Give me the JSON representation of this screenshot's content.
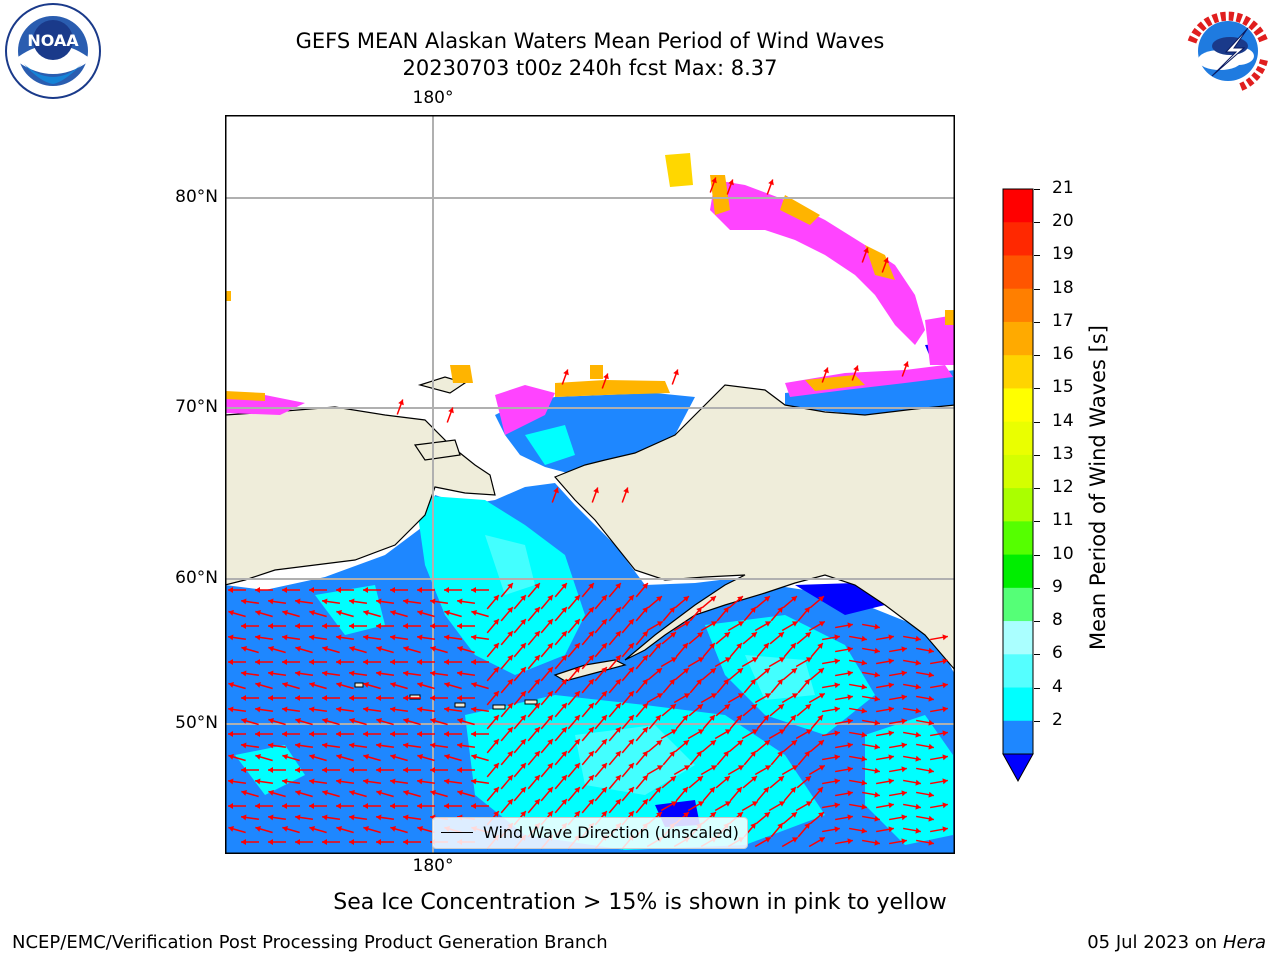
{
  "header": {
    "title_line1": "GEFS MEAN Alaskan Waters Mean Period of Wind Waves",
    "title_line2": "20230703 t00z 240h fcst   Max: 8.37"
  },
  "logos": {
    "left": "NOAA",
    "right": "NATIONAL WEATHER SERVICE"
  },
  "map": {
    "lat_labels": [
      "80°N",
      "70°N",
      "60°N",
      "50°N"
    ],
    "lon_label_top": "180°",
    "lon_label_bottom": "180°",
    "legend_label": "Wind Wave Direction (unscaled)",
    "colors": {
      "land": "#efedda",
      "ocean_2_4": "#1e87ff",
      "ocean_4_6": "#00ffff",
      "ocean_6_8": "#43ffff",
      "below_2": "#0000ff",
      "ice_pink": "#ff44ff",
      "ice_orange": "#ffb400",
      "ice_yellow": "#ffd700",
      "arrow": "#ff0000",
      "grid": "#b0b0b0"
    }
  },
  "colorbar": {
    "label": "Mean Period of Wind Waves [s]",
    "ticks": [
      "21",
      "20",
      "19",
      "18",
      "17",
      "16",
      "15",
      "14",
      "13",
      "12",
      "11",
      "10",
      "9",
      "8",
      "6",
      "4",
      "2"
    ],
    "colors": [
      "#ff0000",
      "#ff2800",
      "#ff5500",
      "#ff7f00",
      "#ffaa00",
      "#ffd400",
      "#ffff00",
      "#eaff00",
      "#d4ff00",
      "#aaff00",
      "#55ff00",
      "#00ee00",
      "#55ff77",
      "#aaffff",
      "#55ffff",
      "#00ffff",
      "#1e87ff"
    ],
    "under_color": "#0000ff"
  },
  "notes": {
    "sea_ice": "Sea Ice Concentration > 15% is shown in pink to yellow"
  },
  "footer": {
    "left": "NCEP/EMC/Verification Post Processing Product Generation Branch",
    "right_prefix": "05 Jul 2023 on ",
    "right_host": "Hera"
  }
}
